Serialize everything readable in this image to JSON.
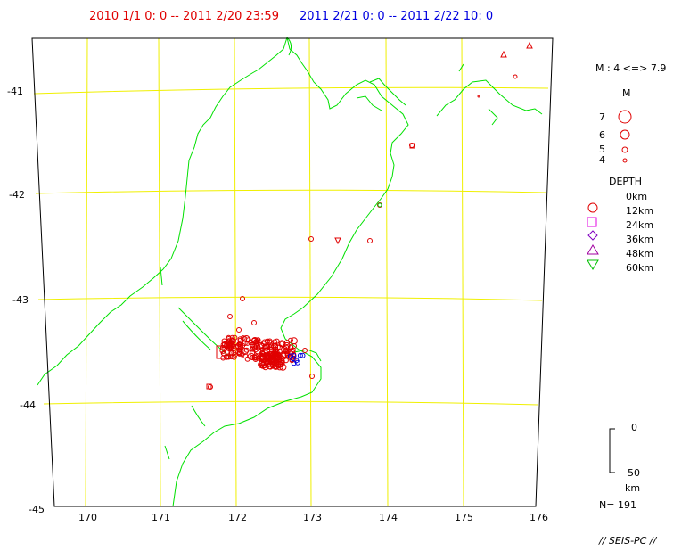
{
  "header": {
    "range1": "2010 1/1  0: 0 -- 2011  2/20 23:59",
    "range2": "2011  2/21   0: 0 --  2011  2/22 10: 0",
    "color1": "#e00000",
    "color2": "#0000e0"
  },
  "axes": {
    "lat_labels": [
      "-41",
      "-42",
      "-43",
      "-44",
      "-45"
    ],
    "lon_labels": [
      "170",
      "171",
      "172",
      "173",
      "174",
      "175",
      "176"
    ]
  },
  "legend": {
    "magnitude_range": "M : 4 <=> 7.9",
    "m_title": "M",
    "m_items": [
      "7",
      "6",
      "5",
      "4"
    ],
    "depth_title": "DEPTH",
    "depth_items": [
      "0km",
      "12km",
      "24km",
      "36km",
      "48km",
      "60km"
    ],
    "depth_colors": [
      "#e00000",
      "#e000e0",
      "#8000c0",
      "#a000a0",
      "#00c000"
    ],
    "depth_scale_top": "0",
    "depth_scale_bottom": "50",
    "depth_scale_unit": "km",
    "count": "N= 191"
  },
  "footer": {
    "credit": "// SEIS-PC //"
  },
  "colors": {
    "coast": "#00e000",
    "grid": "#f0f000",
    "event_old": "#e00000",
    "event_new": "#0000e0"
  }
}
